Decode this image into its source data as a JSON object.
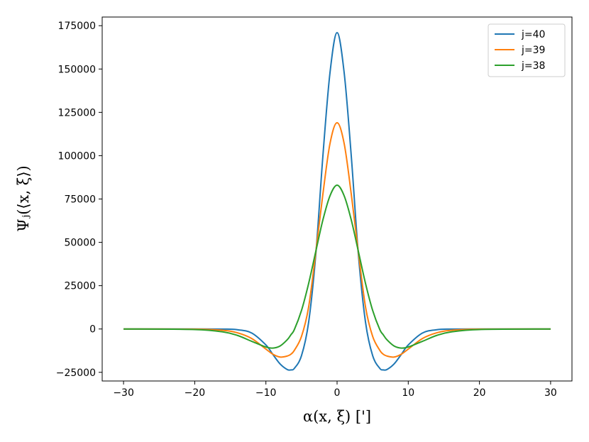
{
  "chart_data": {
    "type": "line",
    "title": "",
    "xlabel": "α(x, ξ) [']",
    "ylabel": "Ψⱼ(⟨x, ξ⟩)",
    "xlim": [
      -33,
      33
    ],
    "ylim": [
      -30000,
      180000
    ],
    "xticks": [
      -30,
      -20,
      -10,
      0,
      10,
      20,
      30
    ],
    "xtick_labels": [
      "−30",
      "−20",
      "−10",
      "0",
      "10",
      "20",
      "30"
    ],
    "yticks": [
      -25000,
      0,
      25000,
      50000,
      75000,
      100000,
      125000,
      150000,
      175000
    ],
    "ytick_labels": [
      "−25000",
      "0",
      "25000",
      "50000",
      "75000",
      "100000",
      "125000",
      "150000",
      "175000"
    ],
    "grid": false,
    "legend_position": "top-right",
    "x": [
      -30,
      -20,
      -16,
      -14,
      -12,
      -10,
      -9,
      -8,
      -7,
      -6.5,
      -6,
      -5,
      -4,
      -3,
      -2,
      -1,
      0,
      1,
      2,
      3,
      4,
      5,
      6,
      6.5,
      7,
      8,
      9,
      10,
      12,
      14,
      16,
      20,
      30
    ],
    "series": [
      {
        "name": "j=40",
        "color": "#1f77b4",
        "values": [
          0,
          -2,
          -60,
          -420,
          -2300,
          -9200,
          -14800,
          -20200,
          -23400,
          -23600,
          -22700,
          -15400,
          3800,
          42600,
          99500,
          147700,
          171000,
          147700,
          99500,
          42600,
          3800,
          -15400,
          -22700,
          -23600,
          -23400,
          -20200,
          -14800,
          -9200,
          -2300,
          -420,
          -60,
          -2,
          0
        ]
      },
      {
        "name": "j=39",
        "color": "#ff7f0e",
        "values": [
          0,
          -90,
          -780,
          -2200,
          -5500,
          -11600,
          -14600,
          -16200,
          -15600,
          -14600,
          -12300,
          -4300,
          12600,
          44000,
          77600,
          106900,
          119000,
          106900,
          77600,
          44000,
          12600,
          -4300,
          -12300,
          -14600,
          -15600,
          -16200,
          -14600,
          -11600,
          -5500,
          -2200,
          -780,
          -90,
          0
        ]
      },
      {
        "name": "j=38",
        "color": "#2ca02c",
        "values": [
          0,
          -300,
          -1700,
          -3700,
          -7100,
          -10400,
          -11000,
          -9800,
          -6200,
          -3400,
          -300,
          10700,
          26200,
          44600,
          62800,
          76800,
          83000,
          76800,
          62800,
          44600,
          26200,
          10700,
          -300,
          -3400,
          -6200,
          -9800,
          -11000,
          -10400,
          -7100,
          -3700,
          -1700,
          -300,
          0
        ]
      }
    ]
  }
}
